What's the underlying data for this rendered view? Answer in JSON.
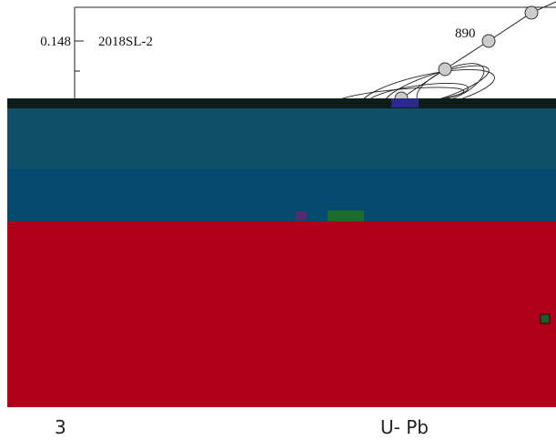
{
  "figure": {
    "sample_label": "2018SL-2",
    "y_tick_label": "0.148",
    "age_label": "890"
  },
  "caption": {
    "number": "3",
    "text": "U- Pb"
  }
}
